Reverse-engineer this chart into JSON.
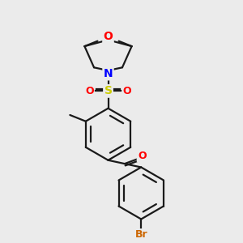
{
  "background_color": "#ebebeb",
  "bond_color": "#1a1a1a",
  "atom_colors": {
    "O": "#ff0000",
    "N": "#0000ff",
    "S": "#cccc00",
    "Br": "#cc6600",
    "C": "#1a1a1a"
  },
  "figsize": [
    3.0,
    3.0
  ],
  "dpi": 100,
  "lw": 1.6
}
